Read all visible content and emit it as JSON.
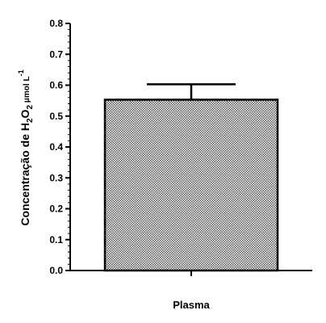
{
  "chart_data": {
    "type": "bar",
    "categories": [
      "Plasma"
    ],
    "series": [
      {
        "values": [
          0.553
        ],
        "error": [
          0.05
        ]
      }
    ],
    "xlabel": "",
    "ylabel": {
      "part1": "Concentração de H",
      "sub1": "2",
      "part2": "O",
      "sub2": "2",
      "unit": " μmol L",
      "sup": "-1"
    },
    "ylim": [
      0.0,
      0.8
    ],
    "yticks": [
      "0.0",
      "0.1",
      "0.2",
      "0.3",
      "0.4",
      "0.5",
      "0.6",
      "0.7",
      "0.8"
    ],
    "grid": false,
    "legend": "none",
    "colors": {
      "axis": "#000000",
      "bar_fill": "#999999",
      "bar_pattern_dark": "#000000"
    }
  }
}
